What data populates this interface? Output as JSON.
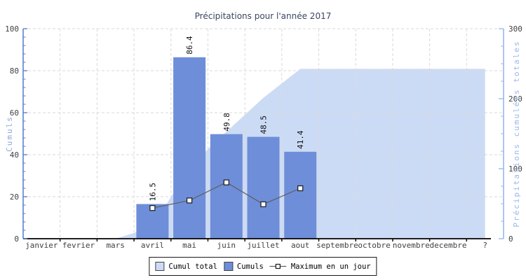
{
  "colors": {
    "bar": "#6e8ed9",
    "area": "#ccdbf5",
    "line": "#5f5f5f",
    "marker_fill": "#ffffff",
    "marker_stroke": "#1a1a1a",
    "grid": "#d9d9d9",
    "axis_left": "#5b82d4",
    "axis_right": "#9ab8ea",
    "axis_bottom": "#000000",
    "title_text": "#3b4563",
    "tick_text": "#3f3f3f",
    "bar_label_text": "#111111",
    "left_axis_title_text": "#8ea6d9",
    "right_axis_title_text": "#9ab7ea",
    "legend_border": "#1a1a1a",
    "legend_text": "#000000",
    "swatch_border": "#444444"
  },
  "chart_data": {
    "type": "bar",
    "title": "Précipitations pour l'année 2017",
    "categories": [
      "janvier",
      "fevrier",
      "mars",
      "avril",
      "mai",
      "juin",
      "juillet",
      "aout",
      "septembre",
      "octobre",
      "novembre",
      "decembre",
      "?"
    ],
    "series": [
      {
        "name": "Cumul total",
        "type": "area",
        "axis": "right",
        "values": [
          null,
          null,
          0,
          16.5,
          102.9,
          152.7,
          201.2,
          242.6,
          242.6,
          242.6,
          242.6,
          242.6,
          242.6
        ]
      },
      {
        "name": "Cumuls",
        "type": "bar",
        "axis": "left",
        "values": [
          null,
          null,
          null,
          16.5,
          86.4,
          49.8,
          48.5,
          41.4,
          null,
          null,
          null,
          null,
          null
        ],
        "data_labels": [
          "",
          "",
          "",
          "16.5",
          "86.4",
          "49.8",
          "48.5",
          "41.4",
          "",
          "",
          "",
          "",
          ""
        ]
      },
      {
        "name": "Maximum en un jour",
        "type": "line",
        "axis": "left",
        "values": [
          null,
          null,
          null,
          14.6,
          18.2,
          26.8,
          16.4,
          24.0,
          null,
          null,
          null,
          null,
          null
        ]
      }
    ],
    "left_axis": {
      "label": "Cumuls",
      "min": 0,
      "max": 100,
      "major_ticks": [
        0,
        20,
        40,
        60,
        80,
        100
      ],
      "minor_step": 4
    },
    "right_axis": {
      "label": "Précipitations cumulées totales",
      "min": 0,
      "max": 300,
      "major_ticks": [
        0,
        100,
        200,
        300
      ],
      "minor_step": 25
    },
    "grid": true,
    "legend_position": "bottom-center",
    "legend": [
      {
        "label": "Cumul total",
        "swatch": "area"
      },
      {
        "label": "Cumuls",
        "swatch": "bar"
      },
      {
        "label": "Maximum en un jour",
        "swatch": "line-marker"
      }
    ]
  }
}
